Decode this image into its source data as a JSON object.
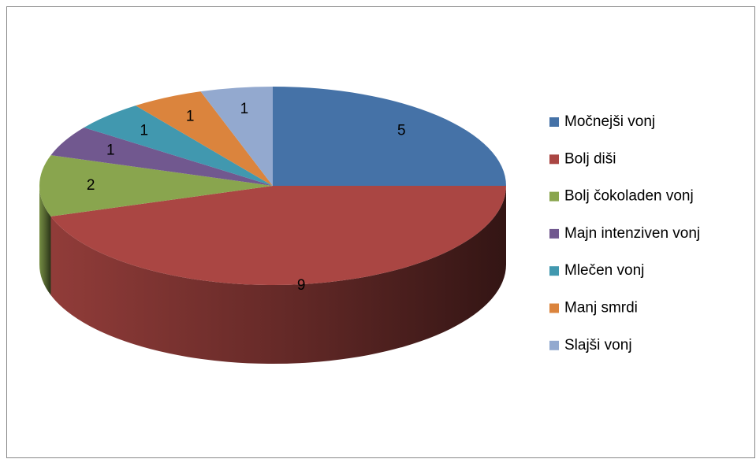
{
  "chart_data": {
    "type": "pie",
    "categories": [
      "Močnejši vonj",
      "Bolj diši",
      "Bolj čokoladen vonj",
      "Majn intenziven vonj",
      "Mlečen vonj",
      "Manj smrdi",
      "Slajši vonj"
    ],
    "values": [
      5,
      9,
      2,
      1,
      1,
      1,
      1
    ],
    "colors": [
      "#4572a7",
      "#aa4643",
      "#89a54e",
      "#71588f",
      "#4198af",
      "#db843d",
      "#93a9cf"
    ],
    "legend": "right"
  }
}
